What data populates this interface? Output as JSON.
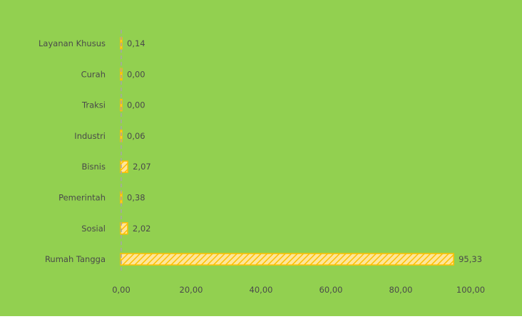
{
  "chart_data": {
    "type": "bar",
    "orientation": "horizontal",
    "categories": [
      "Layanan Khusus",
      "Curah",
      "Traksi",
      "Industri",
      "Bisnis",
      "Pemerintah",
      "Sosial",
      "Rumah Tangga"
    ],
    "values": [
      0.14,
      0.0,
      0.0,
      0.06,
      2.07,
      0.38,
      2.02,
      95.33
    ],
    "data_labels": [
      "0,14",
      "0,00",
      "0,00",
      "0,06",
      "2,07",
      "0,38",
      "2,02",
      "95,33"
    ],
    "x_ticks": [
      0,
      20,
      40,
      60,
      80,
      100
    ],
    "x_tick_labels": [
      "0,00",
      "20,00",
      "40,00",
      "60,00",
      "80,00",
      "100,00"
    ],
    "xlim": [
      0,
      100
    ],
    "title": "",
    "xlabel": "",
    "ylabel": "",
    "grid": false,
    "legend": "none",
    "colors": {
      "background": "#92d050",
      "bar_fill": "#ffe699",
      "bar_stripe": "#ffc000",
      "bar_border": "#ffc000",
      "axis_line": "#a6a6a6",
      "text": "#4a4a4a"
    }
  }
}
